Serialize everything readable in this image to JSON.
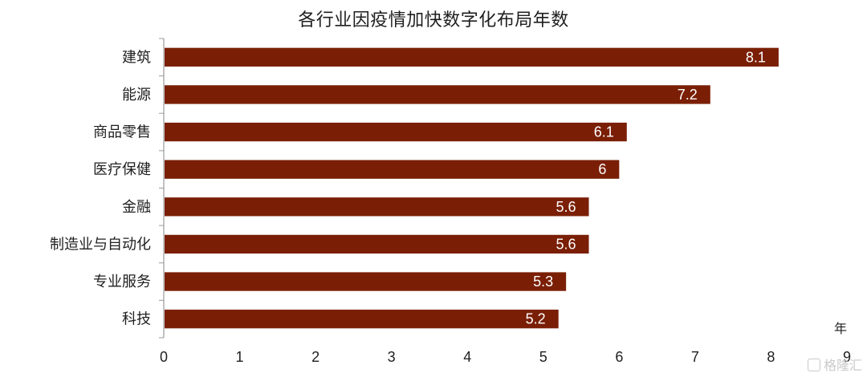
{
  "chart_data": {
    "type": "bar",
    "orientation": "horizontal",
    "title": "各行业因疫情加快数字化布局年数",
    "categories": [
      "建筑",
      "能源",
      "商品零售",
      "医疗保健",
      "金融",
      "制造业与自动化",
      "专业服务",
      "科技"
    ],
    "values": [
      8.1,
      7.2,
      6.1,
      6,
      5.6,
      5.6,
      5.3,
      5.2
    ],
    "value_labels": [
      "8.1",
      "7.2",
      "6.1",
      "6",
      "5.6",
      "5.6",
      "5.3",
      "5.2"
    ],
    "xticks": [
      "0",
      "1",
      "2",
      "3",
      "4",
      "5",
      "6",
      "7",
      "8",
      "9"
    ],
    "xlim": [
      0,
      9
    ],
    "xunit": "年",
    "grid": false,
    "bar_color": "#7a1f06"
  },
  "watermark": {
    "text": "格隆汇",
    "icon": "gelonghui-logo-icon"
  }
}
